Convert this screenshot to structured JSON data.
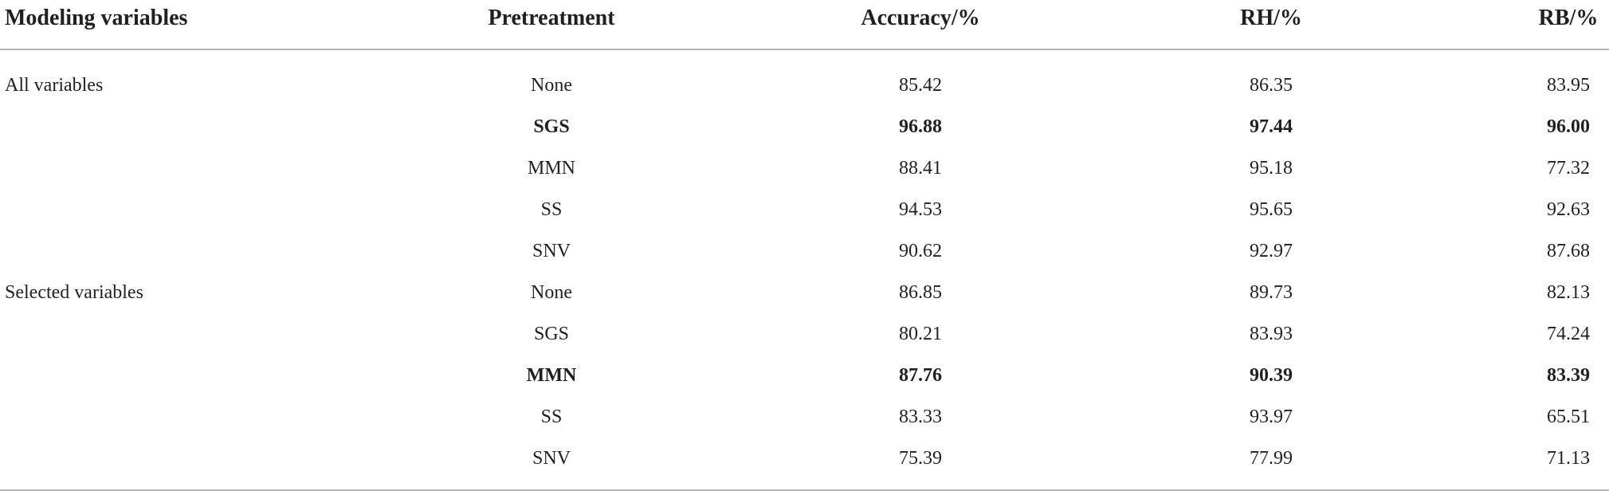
{
  "table": {
    "header": [
      "Modeling variables",
      "Pretreatment",
      "Accuracy/%",
      "RH/%",
      "RB/%"
    ],
    "rows": [
      [
        "All variables",
        "None",
        "85.42",
        "86.35",
        "83.95"
      ],
      [
        null,
        "SGS",
        "96.88",
        "97.44",
        "96.00"
      ],
      [
        null,
        "MMN",
        "88.41",
        "95.18",
        "77.32"
      ],
      [
        null,
        "SS",
        "94.53",
        "95.65",
        "92.63"
      ],
      [
        null,
        "SNV",
        "90.62",
        "92.97",
        "87.68"
      ],
      [
        "Selected variables",
        "None",
        "86.85",
        "89.73",
        "82.13"
      ],
      [
        null,
        "SGS",
        "80.21",
        "83.93",
        "74.24"
      ],
      [
        null,
        "MMN",
        "87.76",
        "90.39",
        "83.39"
      ],
      [
        null,
        "SS",
        "83.33",
        "93.97",
        "65.51"
      ],
      [
        null,
        "SNV",
        "75.39",
        "77.99",
        "71.13"
      ]
    ],
    "bold_rows": [
      1,
      7
    ]
  }
}
